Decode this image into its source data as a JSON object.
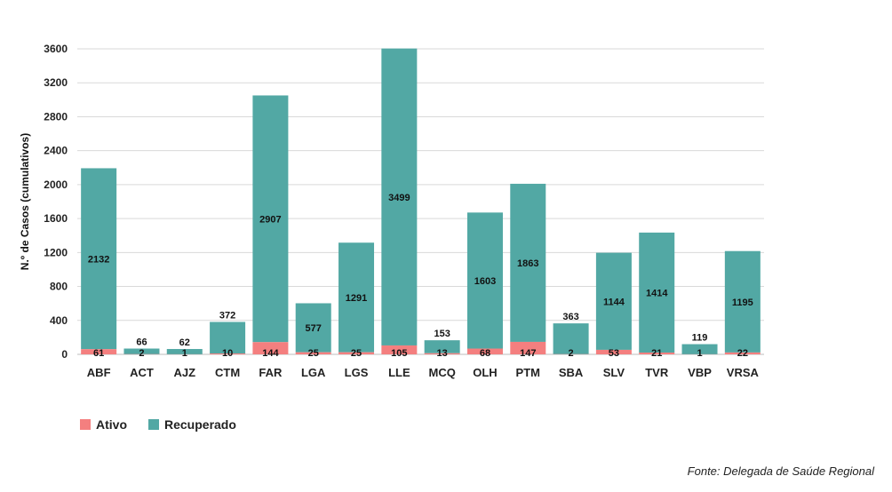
{
  "chart_data": {
    "type": "bar",
    "stacked": true,
    "categories": [
      "ABF",
      "ACT",
      "AJZ",
      "CTM",
      "FAR",
      "LGA",
      "LGS",
      "LLE",
      "MCQ",
      "OLH",
      "PTM",
      "SBA",
      "SLV",
      "TVR",
      "VBP",
      "VRSA"
    ],
    "series": [
      {
        "name": "Ativo",
        "color": "#f47f7f",
        "values": [
          61,
          2,
          1,
          10,
          144,
          25,
          25,
          105,
          13,
          68,
          147,
          2,
          53,
          21,
          1,
          22
        ]
      },
      {
        "name": "Recuperado",
        "color": "#52a8a4",
        "values": [
          2132,
          66,
          62,
          372,
          2907,
          577,
          1291,
          3499,
          153,
          1603,
          1863,
          363,
          1144,
          1414,
          119,
          1195
        ]
      }
    ],
    "ylabel": "N.º de Casos (cumulativos)",
    "ylim": [
      0,
      3600
    ],
    "yticks": [
      0,
      400,
      800,
      1200,
      1600,
      2000,
      2400,
      2800,
      3200,
      3600
    ],
    "grid": true,
    "legend_position": "bottom-left"
  },
  "source": "Fonte: Delegada de Saúde Regional"
}
